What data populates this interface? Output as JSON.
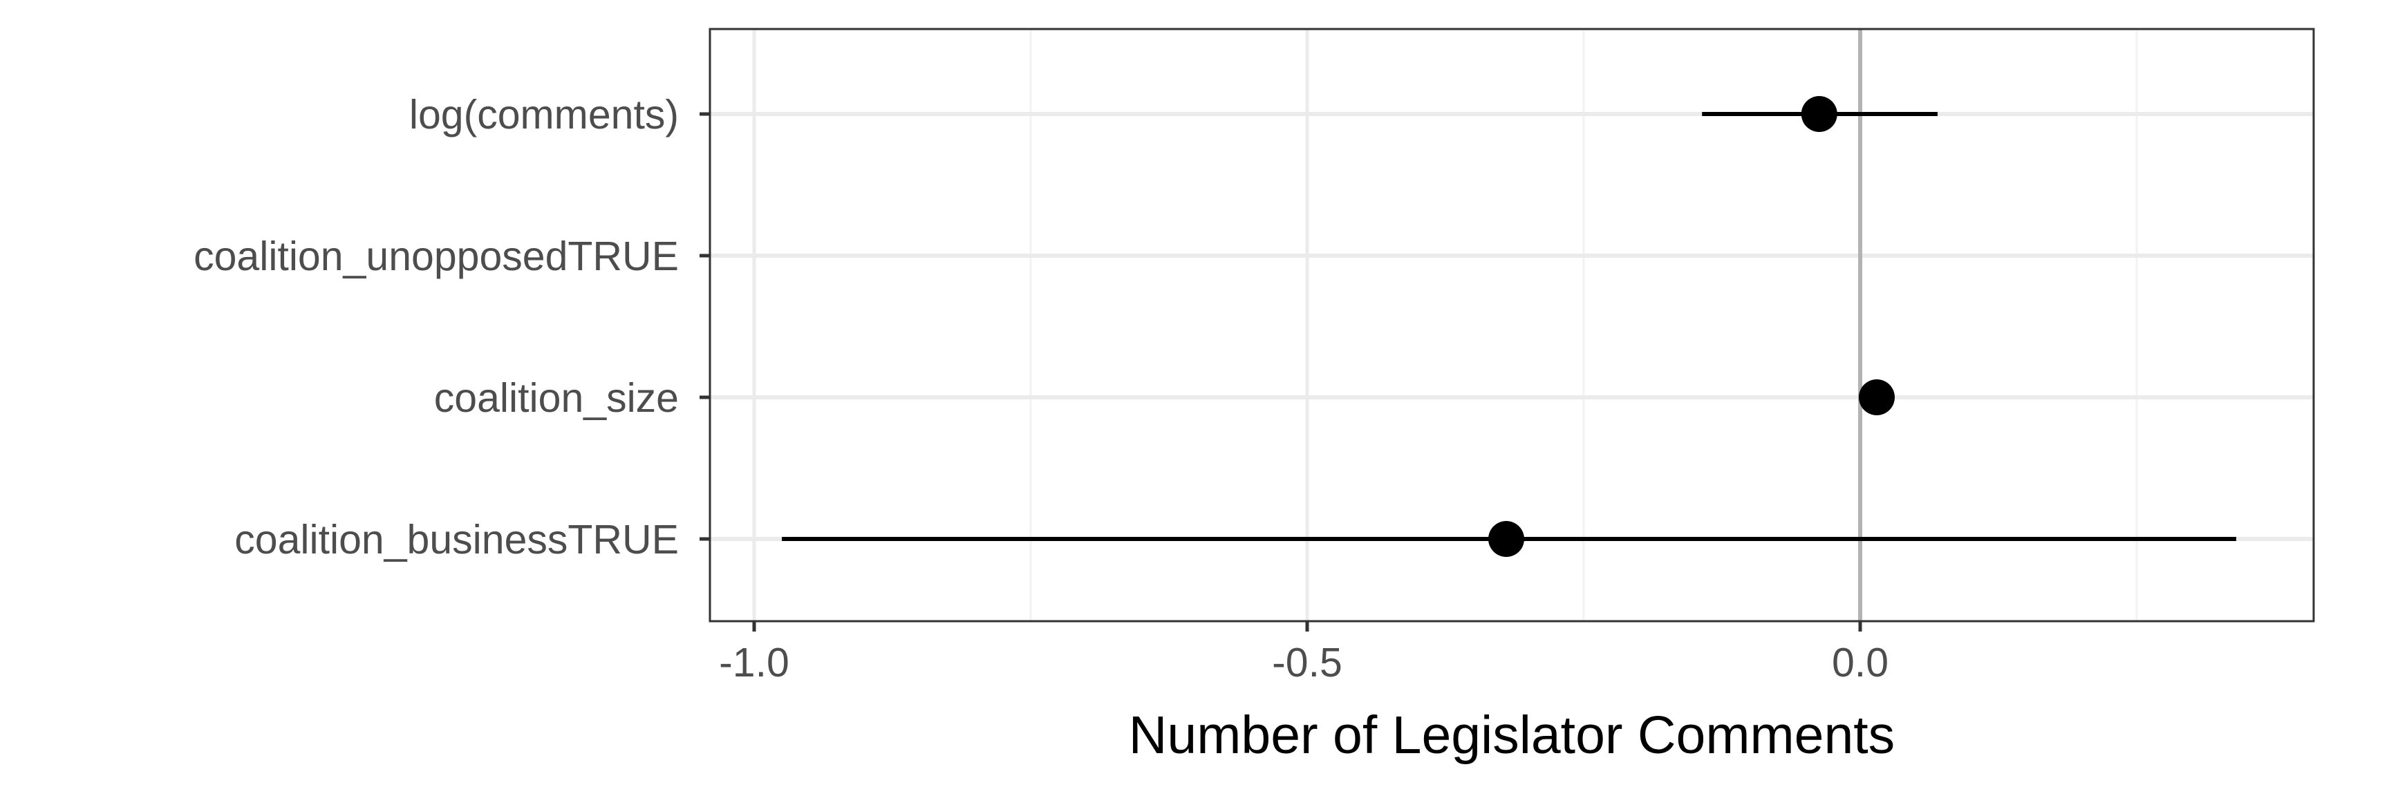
{
  "chart_data": {
    "type": "scatter",
    "subtype": "coefficient-plot",
    "xlabel": "Number of Legislator Comments",
    "ylabel": "",
    "xlim": [
      -1.04,
      0.41
    ],
    "x_ticks": [
      -1.0,
      -0.5,
      0.0
    ],
    "x_tick_labels": [
      "-1.0",
      "-0.5",
      "0.0"
    ],
    "x_minor_ticks": [
      -0.75,
      -0.25,
      0.25
    ],
    "reference_line_x": 0.0,
    "grid": true,
    "categories": [
      "log(comments)",
      "coalition_unopposedTRUE",
      "coalition_size",
      "coalition_businessTRUE"
    ],
    "series": [
      {
        "points": [
          {
            "term": "log(comments)",
            "estimate": -0.037,
            "conf_low": -0.143,
            "conf_high": 0.07
          },
          {
            "term": "coalition_unopposedTRUE",
            "estimate": null,
            "conf_low": null,
            "conf_high": null
          },
          {
            "term": "coalition_size",
            "estimate": 0.015,
            "conf_low": 0.015,
            "conf_high": 0.015
          },
          {
            "term": "coalition_businessTRUE",
            "estimate": -0.32,
            "conf_low": -0.975,
            "conf_high": 0.34
          }
        ]
      }
    ],
    "colors": {
      "point": "#000000",
      "errorbar": "#000000",
      "grid_major": "#ebebeb",
      "grid_minor": "#f2f2f2",
      "zero_line": "#b3b3b3",
      "panel_border": "#333333",
      "tick_text": "#4d4d4d"
    }
  }
}
